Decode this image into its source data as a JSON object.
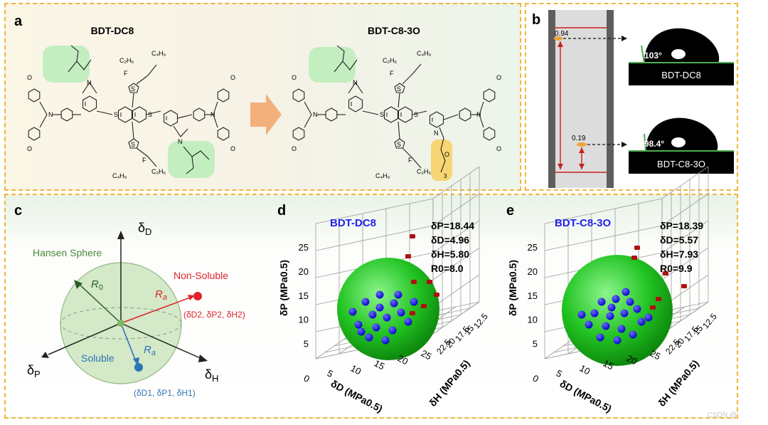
{
  "panel_a": {
    "letter": "a",
    "molecule_left_name": "BDT-DC8",
    "molecule_right_name": "BDT-C8-3O",
    "atom_n": "N",
    "atom_s": "S",
    "atom_f": "F",
    "atom_o": "O",
    "substituent_c2h5": "C₂H₅",
    "substituent_c4h9": "C₄H₉",
    "ethylene_glycol_label": "O",
    "ethylene_glycol_repeat": "3",
    "colors": {
      "alkyl_highlight": "#b8ecb8",
      "glycol_highlight": "#f7d266",
      "arrow": "#f3b07c"
    }
  },
  "panel_b": {
    "letter": "b",
    "rf_top": "0.94",
    "rf_bottom": "0.19",
    "angle_top": "103°",
    "angle_bottom": "98.4°",
    "label_top": "BDT-DC8",
    "label_bottom": "BDT-C8-3O"
  },
  "panel_c": {
    "letter": "c",
    "axis_d": "δ",
    "axis_d_sub": "D",
    "axis_p": "δ",
    "axis_p_sub": "P",
    "axis_h": "δ",
    "axis_h_sub": "H",
    "sphere_label": "Hansen Sphere",
    "r0": "R",
    "r0_sub": "0",
    "ra": "R",
    "ra_sub": "a",
    "non_soluble": "Non-Soluble",
    "soluble": "Soluble",
    "coord_red": "(δD2, δP2, δH2)",
    "coord_blue": "(δD1, δP1, δH1)",
    "colors": {
      "sphere": "#cfe7c3",
      "red": "#e0242b",
      "blue": "#2f74b5"
    }
  },
  "panel_d": {
    "letter": "d",
    "title": "BDT-DC8",
    "param_dp": "δP=18.44",
    "param_dd": "δD=4.96",
    "param_dh": "δH=5.80",
    "param_r0": "R0=8.0",
    "ylabel": "δP (MPa0.5)",
    "xlabel": "δD (MPa0.5)",
    "zlabel": "δH (MPa0.5)"
  },
  "panel_e": {
    "letter": "e",
    "title": "BDT-C8-3O",
    "param_dp": "δP=18.39",
    "param_dd": "δD=5.57",
    "param_dh": "δH=7.93",
    "param_r0": "R0=9.9",
    "ylabel": "δP (MPa0.5)",
    "xlabel": "δD (MPa0.5)",
    "zlabel": "δH (MPa0.5)"
  },
  "axes_3d": {
    "y_ticks": [
      "5",
      "10",
      "15",
      "20",
      "25"
    ],
    "x_ticks": [
      "0",
      "5",
      "10",
      "15",
      "20",
      "25"
    ],
    "z_ticks": [
      "22.5",
      "20",
      "17.5",
      "15",
      "12.5"
    ]
  },
  "watermark": "CSDN @"
}
